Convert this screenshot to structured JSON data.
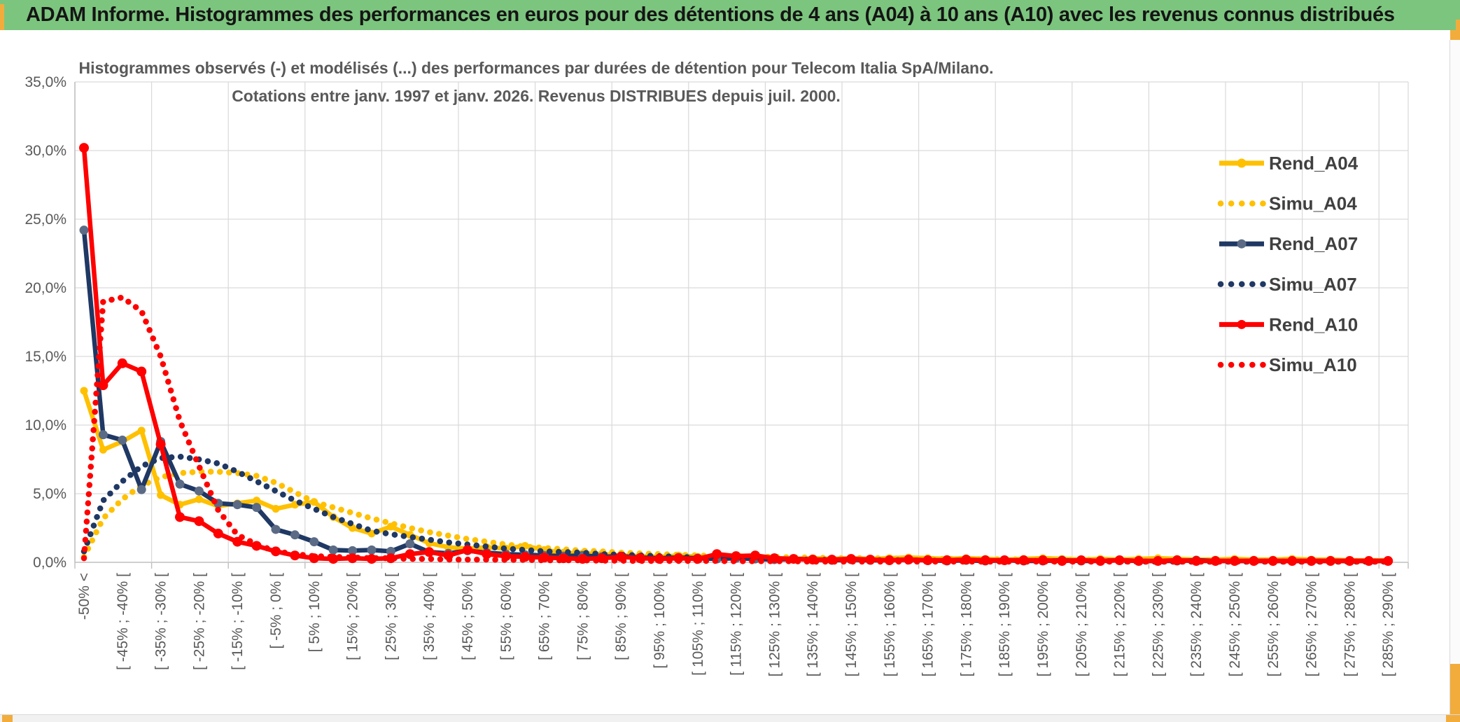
{
  "window": {
    "title": "ADAM Informe. Histogrammes des performances en euros pour des détentions de 4 ans (A04) à 10 ans (A10) avec les revenus connus distribués"
  },
  "colors": {
    "banner_green": "#7CC57E",
    "accent_gold": "#F2AC3C",
    "grid_line": "#d9d9d9",
    "axis_line": "#bfbfbf",
    "title_text": "#595959",
    "tick_text": "#595959",
    "legend_text": "#404040",
    "series_gold": "#FFC000",
    "series_navy": "#1F3864",
    "series_navy_marker": "#5B6B85",
    "series_red": "#FF0000"
  },
  "chart_data": {
    "type": "line",
    "title_line1": "Histogrammes observés (-) et modélisés (...) des performances par durées de détention pour Telecom Italia SpA/Milano.",
    "title_line2": "Cotations entre janv. 1997 et janv. 2026. Revenus DISTRIBUES depuis juil. 2000.",
    "ylabel": "",
    "xlabel": "",
    "ylim": [
      0,
      35
    ],
    "y_tick_labels": [
      "0,0%",
      "5,0%",
      "10,0%",
      "15,0%",
      "20,0%",
      "25,0%",
      "30,0%",
      "35,0%"
    ],
    "grid": true,
    "legend_position": "right",
    "x_label_every_n_bins": 2,
    "bin_count": 69,
    "x_labels": [
      "-50% <",
      "[ -45% ; -40% [",
      "[ -35% ; -30% [",
      "[ -25% ; -20% [",
      "[ -15% ; -10% [",
      "[ -5% ; 0% [",
      "[ 5% ; 10% [",
      "[ 15% ; 20% [",
      "[ 25% ; 30% [",
      "[ 35% ; 40% [",
      "[ 45% ; 50% [",
      "[ 55% ; 60% [",
      "[ 65% ; 70% [",
      "[ 75% ; 80% [",
      "[ 85% ; 90% [",
      "[ 95% ; 100% [",
      "[ 105% ; 110% [",
      "[ 115% ; 120% [",
      "[ 125% ; 130% [",
      "[ 135% ; 140% [",
      "[ 145% ; 150% [",
      "[ 155% ; 160% [",
      "[ 165% ; 170% [",
      "[ 175% ; 180% [",
      "[ 185% ; 190% [",
      "[ 195% ; 200% [",
      "[ 205% ; 210% [",
      "[ 215% ; 220% [",
      "[ 225% ; 230% [",
      "[ 235% ; 240% [",
      "[ 245% ; 250% [",
      "[ 255% ; 260% [",
      "[ 265% ; 270% [",
      "[ 275% ; 280% [",
      "[ 285% ; 290% ["
    ],
    "series": [
      {
        "name": "Rend_A04",
        "style": "solid",
        "color": "#FFC000",
        "marker_color": "#FFC000",
        "marker_r": 5.5,
        "values": [
          12.5,
          8.2,
          8.8,
          9.6,
          4.9,
          4.2,
          4.6,
          4.1,
          4.3,
          4.5,
          3.9,
          4.2,
          4.4,
          3.3,
          2.5,
          2.1,
          2.6,
          2.0,
          1.4,
          1.1,
          1.0,
          1.1,
          1.0,
          1.2,
          0.9,
          0.7,
          0.65,
          0.6,
          0.5,
          0.45,
          0.4,
          0.5,
          0.4,
          0.35,
          0.3,
          0.35,
          0.3,
          0.25,
          0.3,
          0.25,
          0.3,
          0.25,
          0.3,
          0.35,
          0.3,
          0.25,
          0.3,
          0.25,
          0.2,
          0.25,
          0.3,
          0.25,
          0.2,
          0.25,
          0.2,
          0.25,
          0.3,
          0.25,
          0.2,
          0.2,
          0.25,
          0.2,
          0.2,
          0.25,
          0.2,
          0.2,
          0.15,
          0.15,
          0.15
        ]
      },
      {
        "name": "Simu_A04",
        "style": "dotted",
        "color": "#FFC000",
        "values": [
          0.4,
          3.2,
          4.6,
          5.6,
          6.2,
          6.5,
          6.6,
          6.6,
          6.5,
          6.3,
          5.8,
          5.1,
          4.4,
          4.0,
          3.6,
          3.2,
          2.85,
          2.5,
          2.2,
          1.95,
          1.7,
          1.5,
          1.3,
          1.15,
          1.05,
          0.95,
          0.85,
          0.8,
          0.7,
          0.65,
          0.6,
          0.55,
          0.5,
          0.45,
          0.45,
          0.4,
          0.4,
          0.35,
          0.35,
          0.3,
          0.3,
          0.3,
          0.28,
          0.28,
          0.25,
          0.25,
          0.25,
          0.22,
          0.22,
          0.2,
          0.2,
          0.2,
          0.2,
          0.18,
          0.18,
          0.18,
          0.15,
          0.15,
          0.15,
          0.15,
          0.15,
          0.15,
          0.12,
          0.12,
          0.12,
          0.1,
          0.1,
          0.1,
          0.1
        ]
      },
      {
        "name": "Rend_A07",
        "style": "solid",
        "color": "#1F3864",
        "marker_color": "#5B6B85",
        "marker_r": 6.5,
        "values": [
          24.2,
          9.3,
          8.9,
          5.3,
          8.8,
          5.7,
          5.2,
          4.3,
          4.2,
          4.0,
          2.4,
          2.0,
          1.5,
          0.9,
          0.85,
          0.9,
          0.8,
          1.35,
          0.75,
          0.65,
          0.85,
          0.7,
          0.6,
          0.55,
          0.5,
          0.45,
          0.5,
          0.4,
          0.45,
          0.35,
          0.3,
          0.35,
          0.3,
          0.25,
          0.3,
          0.25,
          0.2,
          0.25,
          0.2,
          0.15,
          0.2,
          0.15,
          0.15,
          0.2,
          0.15,
          0.1,
          0.15,
          0.1,
          0.15,
          0.1,
          0.1,
          0.15,
          0.1,
          0.1,
          0.15,
          0.1,
          0.1,
          0.1,
          0.15,
          0.1,
          0.1,
          0.1,
          0.1,
          0.1,
          0.1,
          0.1,
          0.1,
          0.1,
          0.1
        ]
      },
      {
        "name": "Simu_A07",
        "style": "dotted",
        "color": "#1F3864",
        "values": [
          0.8,
          4.5,
          5.9,
          7.0,
          7.6,
          7.7,
          7.5,
          7.2,
          6.6,
          5.9,
          5.2,
          4.5,
          3.9,
          3.3,
          2.8,
          2.3,
          2.05,
          1.85,
          1.65,
          1.45,
          1.3,
          1.15,
          1.0,
          0.9,
          0.8,
          0.75,
          0.7,
          0.6,
          0.55,
          0.5,
          0.45,
          0.4,
          0.35,
          0.3,
          0.3,
          0.25,
          0.25,
          0.2,
          0.2,
          0.18,
          0.18,
          0.15,
          0.15,
          0.15,
          0.12,
          0.12,
          0.1,
          0.1,
          0.1,
          0.1,
          0.1,
          0.08,
          0.08,
          0.08,
          0.08,
          0.05,
          0.05,
          0.05,
          0.05,
          0.05,
          0.05,
          0.05,
          0.05,
          0.05,
          0.05,
          0.05,
          0.05,
          0.05,
          0.05
        ]
      },
      {
        "name": "Rend_A10",
        "style": "solid",
        "color": "#FF0000",
        "marker_color": "#FF0000",
        "marker_r": 7,
        "values": [
          30.2,
          12.9,
          14.5,
          13.9,
          8.6,
          3.3,
          3.0,
          2.1,
          1.5,
          1.2,
          0.8,
          0.5,
          0.3,
          0.25,
          0.3,
          0.25,
          0.3,
          0.6,
          0.75,
          0.5,
          0.9,
          0.6,
          0.45,
          0.4,
          0.35,
          0.3,
          0.25,
          0.3,
          0.4,
          0.3,
          0.25,
          0.3,
          0.25,
          0.6,
          0.45,
          0.5,
          0.3,
          0.25,
          0.2,
          0.2,
          0.25,
          0.2,
          0.15,
          0.2,
          0.15,
          0.15,
          0.2,
          0.15,
          0.15,
          0.15,
          0.15,
          0.1,
          0.15,
          0.1,
          0.15,
          0.1,
          0.1,
          0.15,
          0.1,
          0.1,
          0.1,
          0.1,
          0.1,
          0.1,
          0.1,
          0.1,
          0.1,
          0.1,
          0.1
        ]
      },
      {
        "name": "Simu_A10",
        "style": "dotted",
        "color": "#FF0000",
        "values": [
          0.3,
          19.0,
          19.3,
          18.3,
          15.0,
          10.3,
          7.0,
          3.8,
          2.0,
          1.3,
          0.8,
          0.6,
          0.45,
          0.4,
          0.35,
          0.3,
          0.3,
          0.25,
          0.25,
          0.2,
          0.2,
          0.2,
          0.18,
          0.18,
          0.15,
          0.15,
          0.15,
          0.12,
          0.12,
          0.1,
          0.1,
          0.1,
          0.1,
          0.1,
          0.08,
          0.08,
          0.08,
          0.08,
          0.05,
          0.05,
          0.05,
          0.05,
          0.05,
          0.05,
          0.05,
          0.05,
          0.05,
          0.05,
          0.05,
          0.05,
          0.05,
          0.05,
          0.05,
          0.05,
          0.05,
          0.05,
          0.05,
          0.05,
          0.05,
          0.05,
          0.05,
          0.05,
          0.05,
          0.05,
          0.05,
          0.05,
          0.05,
          0.05,
          0.05
        ]
      }
    ]
  }
}
